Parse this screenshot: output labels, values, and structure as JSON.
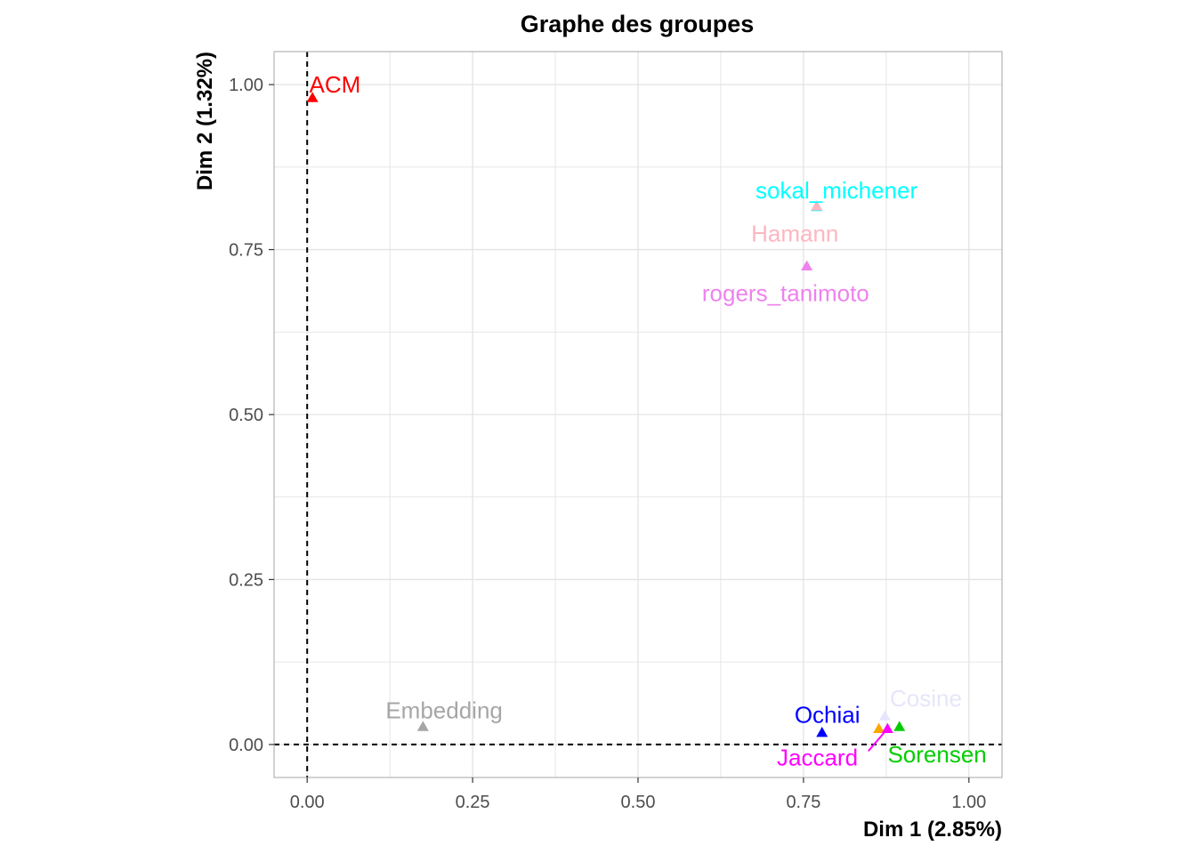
{
  "chart_data": {
    "type": "scatter",
    "title": "Graphe des groupes",
    "xlabel": "Dim 1 (2.85%)",
    "ylabel": "Dim 2 (1.32%)",
    "xlim": [
      -0.05,
      1.05
    ],
    "ylim": [
      -0.05,
      1.05
    ],
    "x_ticks": [
      0,
      0.25,
      0.5,
      0.75,
      1
    ],
    "x_tick_labels": [
      "0.00",
      "0.25",
      "0.50",
      "0.75",
      "1.00"
    ],
    "y_ticks": [
      0,
      0.25,
      0.5,
      0.75,
      1
    ],
    "y_tick_labels": [
      "0.00",
      "0.25",
      "0.50",
      "0.75",
      "1.00"
    ],
    "grid": true,
    "marker": "triangle",
    "reference_lines": {
      "x": 0,
      "y": 0,
      "style": "dashed"
    },
    "points": [
      {
        "name": "ACM",
        "x": 0.008,
        "y": 0.98,
        "color": "#ff0000",
        "label_x": 0.042,
        "label_y": 1.0
      },
      {
        "name": "sokal_michener",
        "x": 0.77,
        "y": 0.815,
        "color": "#00ffff",
        "label_x": 0.8,
        "label_y": 0.84
      },
      {
        "name": "Hamann",
        "x": 0.77,
        "y": 0.816,
        "color": "#ffb6c1",
        "label_x": 0.737,
        "label_y": 0.774
      },
      {
        "name": "rogers_tanimoto",
        "x": 0.755,
        "y": 0.725,
        "color": "#ee82ee",
        "label_x": 0.723,
        "label_y": 0.684
      },
      {
        "name": "Embedding",
        "x": 0.175,
        "y": 0.027,
        "color": "#a6a6a6",
        "label_x": 0.207,
        "label_y": 0.052
      },
      {
        "name": "Cosine",
        "x": 0.873,
        "y": 0.043,
        "color": "#e6e6fa",
        "label_x": 0.935,
        "label_y": 0.07
      },
      {
        "name": "Ochiai",
        "x": 0.778,
        "y": 0.018,
        "color": "#0000ff",
        "label_x": 0.786,
        "label_y": 0.045
      },
      {
        "name": "",
        "x": 0.864,
        "y": 0.024,
        "color": "#ffa500"
      },
      {
        "name": "Jaccard",
        "x": 0.877,
        "y": 0.024,
        "color": "#ff00ff",
        "label_x": 0.771,
        "label_y": -0.02,
        "leader_to": [
          0.848,
          -0.01
        ]
      },
      {
        "name": "Sorensen",
        "x": 0.895,
        "y": 0.027,
        "color": "#00cd00",
        "label_x": 0.952,
        "label_y": -0.015
      }
    ]
  }
}
